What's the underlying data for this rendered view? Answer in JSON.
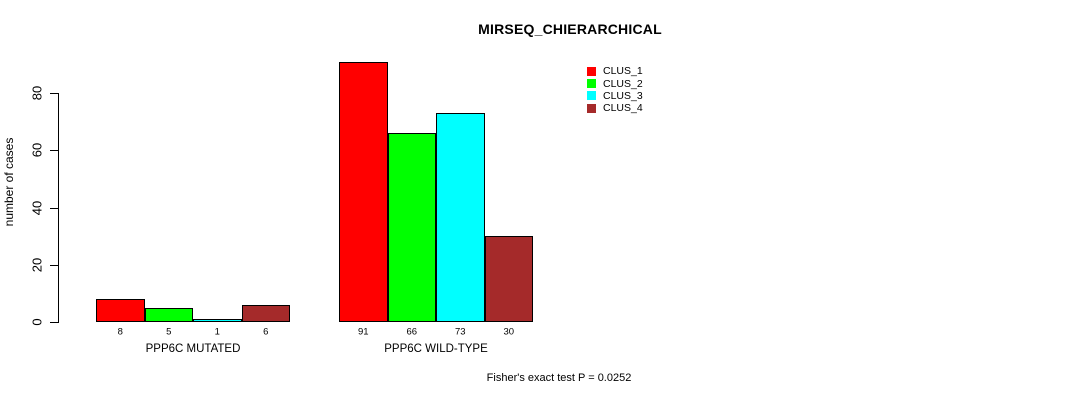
{
  "title": "MIRSEQ_CHIERARCHICAL",
  "y_axis": {
    "label": "number of cases",
    "ticks": [
      0,
      20,
      40,
      60,
      80
    ]
  },
  "legend": {
    "items": [
      {
        "label": "CLUS_1",
        "color": "#FF0000"
      },
      {
        "label": "CLUS_2",
        "color": "#00FF00"
      },
      {
        "label": "CLUS_3",
        "color": "#00FFFF"
      },
      {
        "label": "CLUS_4",
        "color": "#A52A2A"
      }
    ]
  },
  "chart_data": {
    "type": "bar",
    "title": "MIRSEQ_CHIERARCHICAL",
    "categories": [
      "PPP6C MUTATED",
      "PPP6C WILD-TYPE"
    ],
    "series": [
      {
        "name": "CLUS_1",
        "color": "#FF0000",
        "values": [
          8,
          91
        ]
      },
      {
        "name": "CLUS_2",
        "color": "#00FF00",
        "values": [
          5,
          66
        ]
      },
      {
        "name": "CLUS_3",
        "color": "#00FFFF",
        "values": [
          1,
          73
        ]
      },
      {
        "name": "CLUS_4",
        "color": "#A52A2A",
        "values": [
          6,
          30
        ]
      }
    ],
    "xlabel": "",
    "ylabel": "number of cases",
    "ylim": [
      0,
      91
    ],
    "yticks": [
      0,
      20,
      40,
      60,
      80
    ],
    "grid": false,
    "legend_position": "top-right-outside",
    "bar_value_labels": true,
    "annotation": "Fisher's exact test P = 0.0252"
  }
}
